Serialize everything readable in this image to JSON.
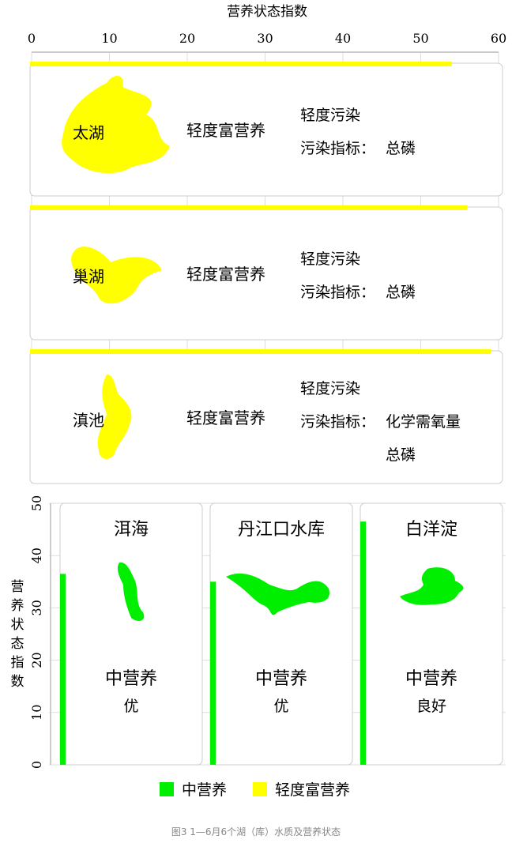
{
  "chart_data": [
    {
      "type": "bar",
      "orientation": "horizontal",
      "xlabel": "营养状态指数",
      "xlim": [
        0,
        60
      ],
      "ticks": [
        0,
        10,
        20,
        30,
        40,
        50,
        60
      ],
      "grid": true,
      "categories": [
        "太湖",
        "巢湖",
        "滇池"
      ],
      "values": [
        54,
        56,
        59
      ],
      "trophic": [
        "轻度富营养",
        "轻度富营养",
        "轻度富营养"
      ],
      "pollution": [
        "轻度污染",
        "轻度污染",
        "轻度污染"
      ],
      "indicator_label": "污染指标：",
      "indicators": [
        [
          "总磷"
        ],
        [
          "总磷"
        ],
        [
          "化学需氧量",
          "总磷"
        ]
      ],
      "color": "#ffff00"
    },
    {
      "type": "bar",
      "orientation": "vertical",
      "ylabel": "营养状态指数",
      "ylim": [
        0,
        50
      ],
      "ticks": [
        0,
        10,
        20,
        30,
        40,
        50
      ],
      "grid": true,
      "categories": [
        "洱海",
        "丹江口水库",
        "白洋淀"
      ],
      "values": [
        36.5,
        35,
        46.5
      ],
      "trophic": [
        "中营养",
        "中营养",
        "中营养"
      ],
      "quality": [
        "优",
        "优",
        "良好"
      ],
      "color": "#00ee00"
    }
  ],
  "legend": [
    {
      "label": "中营养",
      "color": "#00ee00"
    },
    {
      "label": "轻度富营养",
      "color": "#ffff00"
    }
  ],
  "caption": "图3 1—6月6个湖（库）水质及营养状态"
}
